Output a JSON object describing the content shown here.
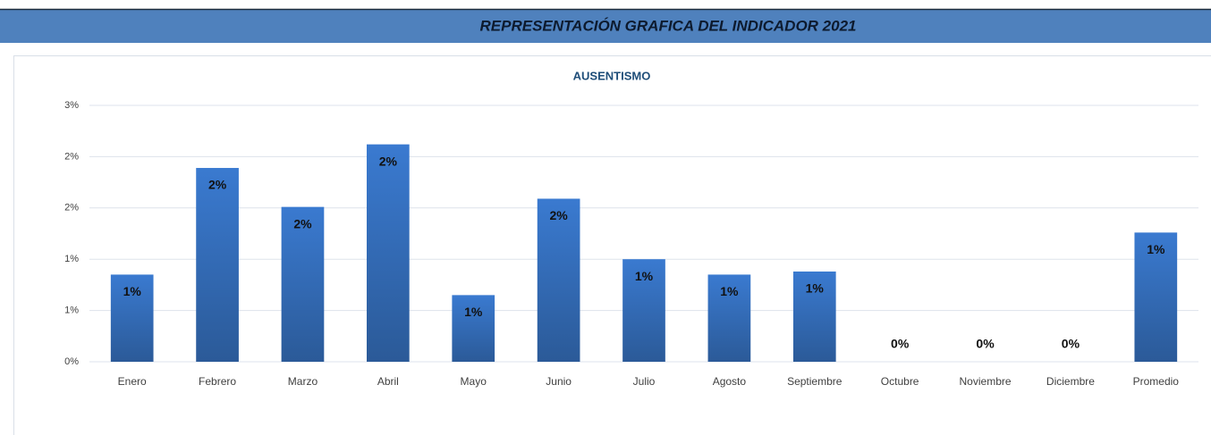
{
  "header": {
    "title": "REPRESENTACIÓN  GRAFICA DEL INDICADOR 2021"
  },
  "chart_data": {
    "type": "bar",
    "title": "AUSENTISMO",
    "categories": [
      "Enero",
      "Febrero",
      "Marzo",
      "Abril",
      "Mayo",
      "Junio",
      "Julio",
      "Agosto",
      "Septiembre",
      "Octubre",
      "Noviembre",
      "Diciembre",
      "Promedio"
    ],
    "values": [
      0.85,
      1.89,
      1.51,
      2.12,
      0.65,
      1.59,
      1.0,
      0.85,
      0.88,
      0,
      0,
      0,
      1.26
    ],
    "value_labels": [
      "1%",
      "2%",
      "2%",
      "2%",
      "1%",
      "2%",
      "1%",
      "1%",
      "1%",
      "0%",
      "0%",
      "0%",
      "1%"
    ],
    "color": "#3a7ad0",
    "ylim": [
      0,
      2.5
    ],
    "yticks": [
      {
        "value": 0,
        "label": "0%"
      },
      {
        "value": 0.5,
        "label": "1%"
      },
      {
        "value": 1,
        "label": "1%"
      },
      {
        "value": 1.5,
        "label": "2%"
      },
      {
        "value": 2,
        "label": "2%"
      },
      {
        "value": 2.5,
        "label": "3%"
      }
    ],
    "grid": true
  }
}
